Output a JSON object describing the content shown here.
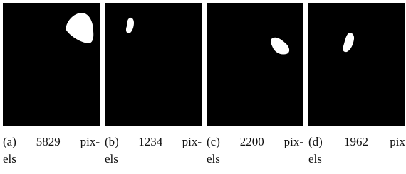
{
  "figure": {
    "panels": [
      {
        "caption": [
          "(a) 5829 pix-",
          "els"
        ]
      },
      {
        "caption": [
          "(b) 1234 pix-",
          "els"
        ]
      },
      {
        "caption": [
          "(c) 2200 pix-",
          "els"
        ]
      },
      {
        "caption": [
          "(d) 1962 pix",
          "els"
        ]
      }
    ]
  }
}
